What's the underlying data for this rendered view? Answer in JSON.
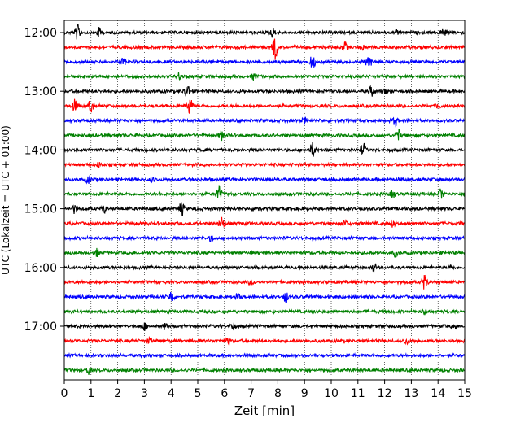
{
  "chart_data": {
    "type": "line",
    "title": "",
    "xlabel": "Zeit  [min]",
    "ylabel": "UTC (Lokalzeit = UTC + 01:00)",
    "xlim": [
      0,
      15
    ],
    "x_ticks": [
      0,
      1,
      2,
      3,
      4,
      5,
      6,
      7,
      8,
      9,
      10,
      11,
      12,
      13,
      14,
      15
    ],
    "y_tick_labels": [
      "12:00",
      "13:00",
      "14:00",
      "15:00",
      "16:00",
      "17:00"
    ],
    "grid": {
      "x": true,
      "style": "dotted"
    },
    "trace_colors": [
      "#000000",
      "#ff0000",
      "#0000ff",
      "#008000"
    ],
    "traces": [
      {
        "start": "12:00",
        "color": "#000000",
        "events": [
          [
            0.5,
            1.0
          ],
          [
            1.3,
            0.6
          ],
          [
            7.8,
            0.6
          ],
          [
            12.5,
            0.4
          ],
          [
            14.2,
            0.5
          ]
        ]
      },
      {
        "start": "12:15",
        "color": "#ff0000",
        "events": [
          [
            7.9,
            1.6
          ],
          [
            10.5,
            0.6
          ],
          [
            11.2,
            0.3
          ]
        ]
      },
      {
        "start": "12:30",
        "color": "#0000ff",
        "events": [
          [
            2.2,
            0.6
          ],
          [
            9.3,
            0.9
          ],
          [
            11.4,
            1.1
          ]
        ]
      },
      {
        "start": "12:45",
        "color": "#008000",
        "events": [
          [
            4.3,
            0.5
          ],
          [
            7.1,
            0.4
          ]
        ]
      },
      {
        "start": "13:00",
        "color": "#000000",
        "events": [
          [
            4.6,
            1.0
          ],
          [
            11.5,
            0.6
          ],
          [
            12.0,
            0.3
          ]
        ]
      },
      {
        "start": "13:15",
        "color": "#ff0000",
        "events": [
          [
            0.4,
            0.8
          ],
          [
            1.0,
            1.0
          ],
          [
            4.7,
            1.2
          ],
          [
            14.0,
            0.3
          ]
        ]
      },
      {
        "start": "13:30",
        "color": "#0000ff",
        "events": [
          [
            9.0,
            0.4
          ],
          [
            12.4,
            0.6
          ]
        ]
      },
      {
        "start": "13:45",
        "color": "#008000",
        "events": [
          [
            5.9,
            0.6
          ],
          [
            12.5,
            0.8
          ]
        ]
      },
      {
        "start": "14:00",
        "color": "#000000",
        "events": [
          [
            9.3,
            1.0
          ],
          [
            11.2,
            0.9
          ]
        ]
      },
      {
        "start": "14:15",
        "color": "#ff0000",
        "events": [
          [
            1.3,
            0.3
          ]
        ]
      },
      {
        "start": "14:30",
        "color": "#0000ff",
        "events": [
          [
            0.9,
            0.5
          ],
          [
            3.3,
            0.3
          ]
        ]
      },
      {
        "start": "14:45",
        "color": "#008000",
        "events": [
          [
            5.8,
            0.9
          ],
          [
            12.3,
            0.5
          ],
          [
            14.1,
            0.7
          ]
        ]
      },
      {
        "start": "15:00",
        "color": "#000000",
        "events": [
          [
            0.4,
            0.6
          ],
          [
            1.5,
            0.5
          ],
          [
            4.4,
            0.9
          ],
          [
            7.2,
            0.3
          ]
        ]
      },
      {
        "start": "15:15",
        "color": "#ff0000",
        "events": [
          [
            5.9,
            0.9
          ],
          [
            10.5,
            0.4
          ],
          [
            12.3,
            0.5
          ]
        ]
      },
      {
        "start": "15:30",
        "color": "#0000ff",
        "events": [
          [
            5.5,
            0.3
          ]
        ]
      },
      {
        "start": "15:45",
        "color": "#008000",
        "events": [
          [
            1.2,
            0.5
          ],
          [
            12.4,
            0.4
          ]
        ]
      },
      {
        "start": "16:00",
        "color": "#000000",
        "events": [
          [
            11.6,
            0.5
          ],
          [
            14.5,
            0.3
          ]
        ]
      },
      {
        "start": "16:15",
        "color": "#ff0000",
        "events": [
          [
            13.5,
            1.0
          ],
          [
            7.0,
            0.3
          ]
        ]
      },
      {
        "start": "16:30",
        "color": "#0000ff",
        "events": [
          [
            4.0,
            0.8
          ],
          [
            8.3,
            0.7
          ],
          [
            6.5,
            0.4
          ]
        ]
      },
      {
        "start": "16:45",
        "color": "#008000",
        "events": [
          [
            13.5,
            0.4
          ]
        ]
      },
      {
        "start": "17:00",
        "color": "#000000",
        "events": [
          [
            3.0,
            0.5
          ],
          [
            3.8,
            0.5
          ],
          [
            6.3,
            0.4
          ],
          [
            14.6,
            0.3
          ]
        ]
      },
      {
        "start": "17:15",
        "color": "#ff0000",
        "events": [
          [
            3.2,
            0.4
          ],
          [
            12.8,
            0.4
          ],
          [
            6.1,
            0.3
          ]
        ]
      },
      {
        "start": "17:30",
        "color": "#0000ff",
        "events": []
      },
      {
        "start": "17:45",
        "color": "#008000",
        "events": [
          [
            0.9,
            0.5
          ]
        ]
      }
    ]
  }
}
